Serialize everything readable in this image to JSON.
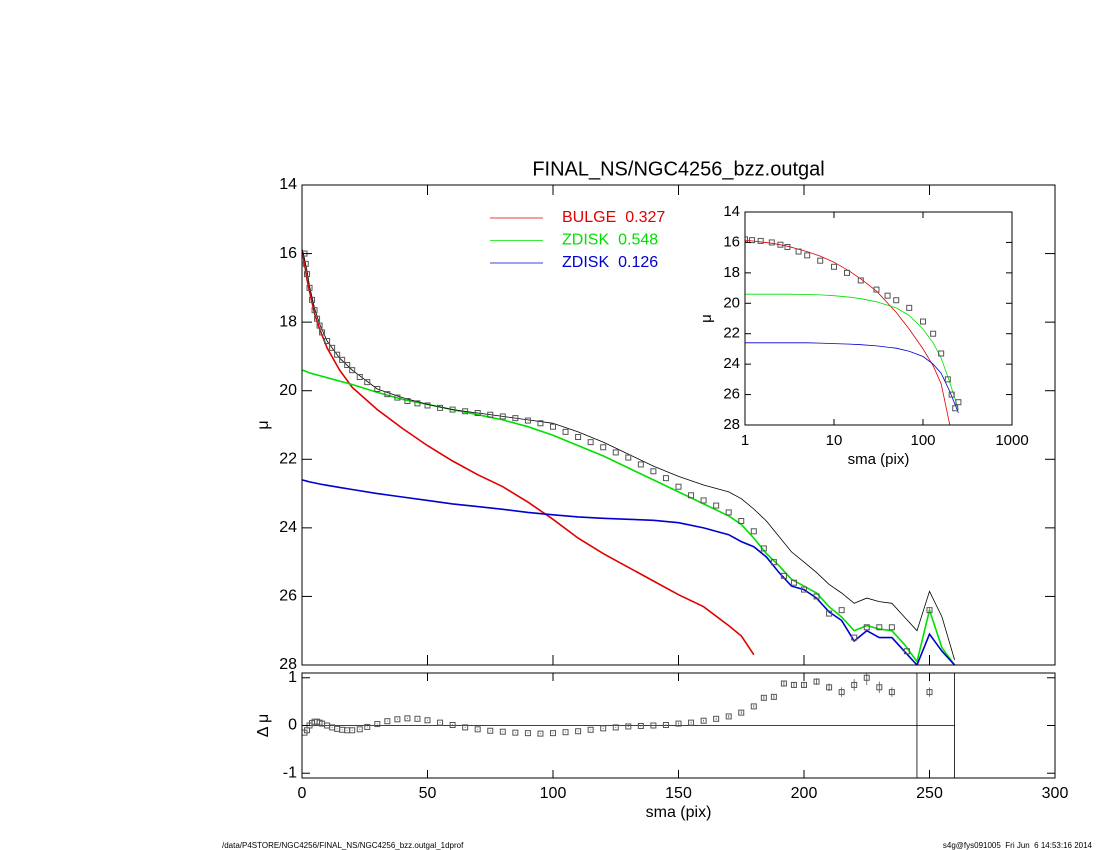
{
  "chart_data": [
    {
      "type": "line",
      "title": "FINAL_NS/NGC4256_bzz.outgal",
      "ylabel": "μ",
      "xlim": [
        0,
        300
      ],
      "xticks": [
        0,
        50,
        100,
        150,
        200,
        250,
        300
      ],
      "xtick_labels": false,
      "ylim": [
        28,
        14
      ],
      "yticks": [
        14,
        16,
        18,
        20,
        22,
        24,
        26,
        28
      ],
      "x": [
        0,
        1,
        2,
        3,
        5,
        7,
        10,
        15,
        20,
        30,
        40,
        50,
        60,
        70,
        80,
        90,
        100,
        110,
        120,
        130,
        140,
        150,
        160,
        170,
        175,
        180,
        185,
        190,
        195,
        200,
        205,
        210,
        215,
        220,
        225,
        230,
        235,
        240,
        245,
        250,
        255,
        260
      ],
      "series": [
        {
          "name": "BULGE",
          "weight": "0.327",
          "color": "#e00000",
          "values": [
            15.9,
            16.3,
            16.75,
            17.1,
            17.75,
            18.2,
            18.75,
            19.4,
            19.9,
            20.55,
            21.1,
            21.6,
            22.05,
            22.45,
            22.8,
            23.25,
            23.75,
            24.3,
            24.75,
            25.15,
            25.55,
            25.95,
            26.3,
            26.85,
            27.15,
            27.7,
            null,
            null,
            null,
            null,
            null,
            null,
            null,
            null,
            null,
            null,
            null,
            null,
            null,
            null,
            null,
            null
          ]
        },
        {
          "name": "ZDISK",
          "weight": "0.548",
          "color": "#00e000",
          "values": [
            19.4,
            19.42,
            19.45,
            19.48,
            19.52,
            19.56,
            19.62,
            19.72,
            19.82,
            20.05,
            20.25,
            20.4,
            20.55,
            20.7,
            20.85,
            21.05,
            21.3,
            21.6,
            21.9,
            22.25,
            22.6,
            22.95,
            23.3,
            23.65,
            23.9,
            24.3,
            24.75,
            25.1,
            25.5,
            25.7,
            25.9,
            26.3,
            26.6,
            27.0,
            26.85,
            26.95,
            27.0,
            27.4,
            27.9,
            26.4,
            27.5,
            28.0
          ]
        },
        {
          "name": "ZDISK",
          "weight": "0.126",
          "color": "#0000d0",
          "values": [
            22.6,
            22.62,
            22.64,
            22.66,
            22.69,
            22.72,
            22.76,
            22.82,
            22.88,
            23.0,
            23.1,
            23.2,
            23.3,
            23.38,
            23.46,
            23.55,
            23.62,
            23.68,
            23.72,
            23.75,
            23.78,
            23.85,
            24.0,
            24.2,
            24.4,
            24.55,
            24.85,
            25.3,
            25.7,
            25.8,
            26.05,
            26.45,
            26.7,
            27.3,
            27.0,
            27.2,
            27.2,
            27.6,
            28.0,
            27.1,
            27.6,
            28.0
          ]
        },
        {
          "color": "#000000",
          "values": [
            15.85,
            16.15,
            16.5,
            16.95,
            17.6,
            18.05,
            18.55,
            19.05,
            19.4,
            19.95,
            20.2,
            20.4,
            20.55,
            20.65,
            20.75,
            20.85,
            20.95,
            21.2,
            21.5,
            21.85,
            22.2,
            22.5,
            22.75,
            22.95,
            23.15,
            23.45,
            23.8,
            24.25,
            24.7,
            25.0,
            25.3,
            25.65,
            25.9,
            26.2,
            26.05,
            26.15,
            26.2,
            26.6,
            27.0,
            25.85,
            26.6,
            27.85
          ]
        },
        {
          "marker": "square",
          "color": "#555555",
          "x": [
            1,
            1.5,
            2,
            3,
            4,
            5,
            6,
            7,
            8,
            10,
            12,
            14,
            16,
            18,
            20,
            23,
            26,
            30,
            34,
            38,
            42,
            46,
            50,
            55,
            60,
            65,
            70,
            75,
            80,
            85,
            90,
            95,
            100,
            105,
            110,
            115,
            120,
            125,
            130,
            135,
            140,
            145,
            150,
            155,
            160,
            165,
            170,
            175,
            180,
            184,
            188,
            192,
            196,
            200,
            205,
            210,
            215,
            220,
            225,
            230,
            235,
            241,
            250
          ],
          "values": [
            16.0,
            16.3,
            16.6,
            17.0,
            17.35,
            17.65,
            17.9,
            18.1,
            18.3,
            18.55,
            18.75,
            18.95,
            19.1,
            19.25,
            19.4,
            19.6,
            19.75,
            19.95,
            20.1,
            20.2,
            20.3,
            20.37,
            20.43,
            20.5,
            20.55,
            20.6,
            20.65,
            20.7,
            20.75,
            20.8,
            20.87,
            20.95,
            21.05,
            21.2,
            21.35,
            21.5,
            21.65,
            21.8,
            21.95,
            22.15,
            22.35,
            22.55,
            22.8,
            23.05,
            23.2,
            23.35,
            23.55,
            23.8,
            24.1,
            24.6,
            25.0,
            25.4,
            25.6,
            25.8,
            26.0,
            26.5,
            26.4,
            27.2,
            26.9,
            26.9,
            26.9,
            27.6,
            26.4
          ]
        }
      ]
    },
    {
      "type": "scatter",
      "xlabel": "sma (pix)",
      "ylabel": "Δ μ",
      "xlim": [
        0,
        300
      ],
      "xticks": [
        0,
        50,
        100,
        150,
        200,
        250,
        300
      ],
      "ylim": [
        -1.1,
        1.1
      ],
      "yticks": [
        -1,
        0,
        1
      ],
      "hline": 0,
      "xlines": [
        245,
        260
      ],
      "color": "#555555",
      "x": [
        1,
        2,
        3,
        4,
        5,
        6,
        7,
        8,
        10,
        12,
        14,
        16,
        18,
        20,
        23,
        26,
        30,
        34,
        38,
        42,
        46,
        50,
        55,
        60,
        65,
        70,
        75,
        80,
        85,
        90,
        95,
        100,
        105,
        110,
        115,
        120,
        125,
        130,
        135,
        140,
        145,
        150,
        155,
        160,
        165,
        170,
        175,
        180,
        184,
        188,
        192,
        196,
        200,
        205,
        210,
        215,
        220,
        225,
        230,
        235,
        250
      ],
      "values": [
        -0.15,
        -0.1,
        0.0,
        0.05,
        0.08,
        0.08,
        0.06,
        0.04,
        0.0,
        -0.04,
        -0.07,
        -0.09,
        -0.1,
        -0.1,
        -0.08,
        -0.03,
        0.03,
        0.09,
        0.13,
        0.15,
        0.14,
        0.11,
        0.06,
        0.01,
        -0.04,
        -0.08,
        -0.11,
        -0.13,
        -0.15,
        -0.16,
        -0.17,
        -0.16,
        -0.14,
        -0.12,
        -0.09,
        -0.06,
        -0.04,
        -0.02,
        -0.01,
        0.0,
        0.01,
        0.04,
        0.06,
        0.1,
        0.14,
        0.19,
        0.27,
        0.4,
        0.58,
        0.6,
        0.88,
        0.85,
        0.85,
        0.92,
        0.8,
        0.7,
        0.85,
        1.0,
        0.8,
        0.7,
        0.7
      ],
      "errors": [
        0.01,
        0.01,
        0.01,
        0.01,
        0.01,
        0.01,
        0.01,
        0.01,
        0.01,
        0.01,
        0.01,
        0.01,
        0.01,
        0.01,
        0.01,
        0.01,
        0.01,
        0.01,
        0.01,
        0.01,
        0.01,
        0.01,
        0.01,
        0.01,
        0.01,
        0.01,
        0.01,
        0.01,
        0.01,
        0.01,
        0.01,
        0.01,
        0.01,
        0.01,
        0.01,
        0.01,
        0.01,
        0.01,
        0.01,
        0.01,
        0.01,
        0.02,
        0.02,
        0.02,
        0.02,
        0.03,
        0.03,
        0.03,
        0.04,
        0.04,
        0.05,
        0.05,
        0.06,
        0.07,
        0.08,
        0.1,
        0.12,
        0.15,
        0.12,
        0.1,
        0.1
      ]
    },
    {
      "type": "line",
      "xlabel": "sma (pix)",
      "ylabel": "μ",
      "xlog": true,
      "xlim": [
        1,
        1000
      ],
      "xticks": [
        1,
        10,
        100,
        1000
      ],
      "ylim": [
        28,
        14
      ],
      "yticks": [
        14,
        16,
        18,
        20,
        22,
        24,
        26,
        28
      ],
      "x": [
        1,
        2,
        3,
        5,
        7,
        10,
        15,
        20,
        30,
        50,
        70,
        100,
        130,
        160,
        200,
        250
      ],
      "series": [
        {
          "color": "#e00000",
          "values": [
            15.85,
            16.05,
            16.25,
            16.6,
            16.9,
            17.3,
            17.9,
            18.4,
            19.2,
            20.6,
            21.7,
            23.0,
            24.1,
            25.3,
            28.0,
            null
          ]
        },
        {
          "color": "#00e000",
          "values": [
            19.4,
            19.4,
            19.4,
            19.42,
            19.45,
            19.5,
            19.6,
            19.7,
            19.9,
            20.3,
            20.8,
            21.7,
            22.6,
            23.6,
            25.2,
            27.0
          ]
        },
        {
          "color": "#0000d0",
          "values": [
            22.6,
            22.6,
            22.6,
            22.6,
            22.62,
            22.65,
            22.68,
            22.72,
            22.8,
            22.95,
            23.15,
            23.5,
            24.0,
            24.6,
            25.8,
            27.2
          ]
        },
        {
          "marker": "square",
          "color": "#555555",
          "x": [
            1,
            1.2,
            1.5,
            2,
            2.5,
            3,
            4,
            5,
            7,
            10,
            14,
            20,
            30,
            40,
            50,
            70,
            100,
            130,
            160,
            190,
            210,
            230,
            250
          ],
          "values": [
            15.8,
            15.85,
            15.9,
            16.0,
            16.15,
            16.3,
            16.6,
            16.85,
            17.2,
            17.6,
            18.0,
            18.5,
            19.1,
            19.5,
            19.8,
            20.3,
            21.2,
            22.0,
            23.3,
            25.0,
            26.0,
            26.9,
            26.5
          ]
        }
      ]
    }
  ],
  "footer": {
    "left": "/data/P4STORE/NGC4256/FINAL_NS/NGC4256_bzz.outgal_1dprof",
    "right": "s4g@fys091005  Fri Jun  6 14:53:16 2014"
  }
}
